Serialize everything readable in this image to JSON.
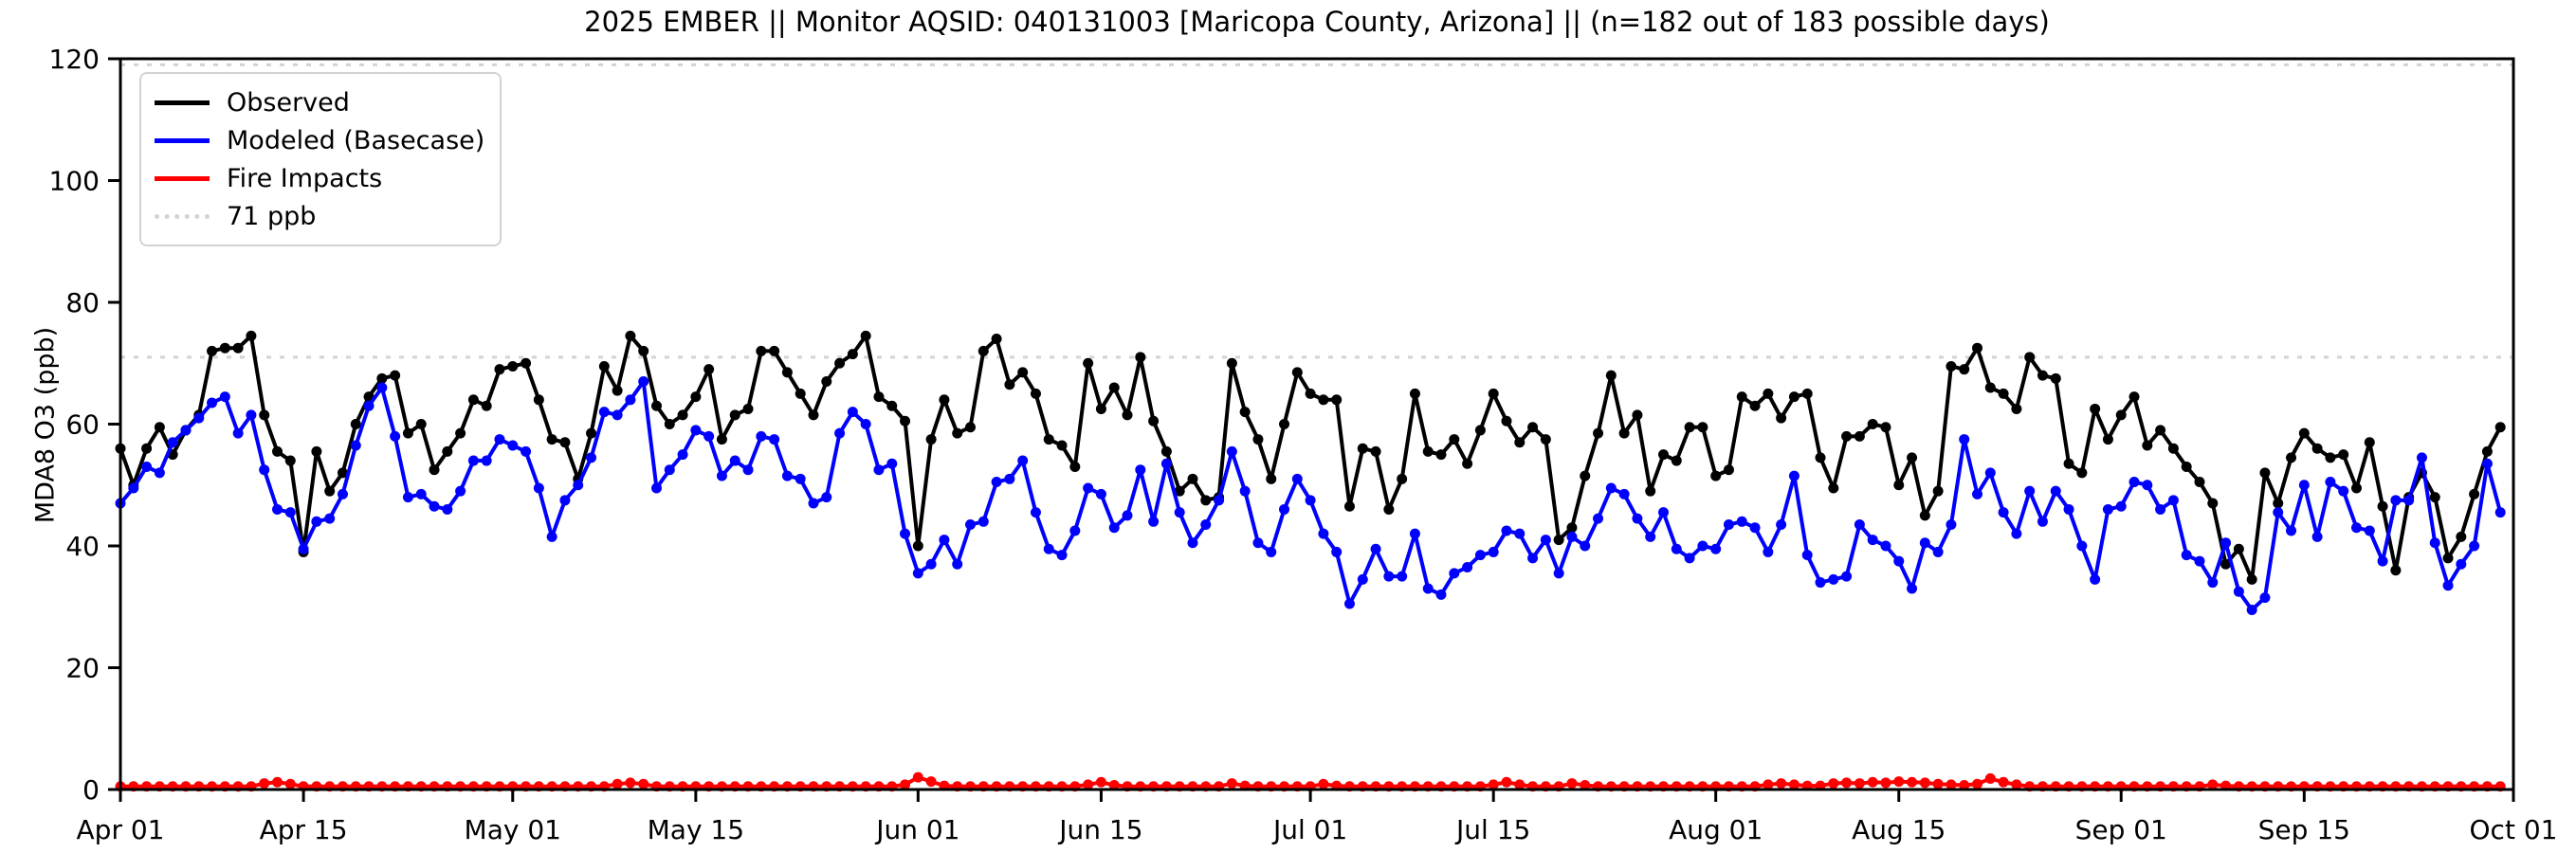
{
  "title": "2025 EMBER || Monitor AQSID: 040131003 [Maricopa County, Arizona] || (n=182 out of 183 possible days)",
  "y_axis_label": "MDA8 O3 (ppb)",
  "legend": {
    "position": "upper-left",
    "items": [
      {
        "label": "Observed",
        "color": "#000000",
        "style": "solid"
      },
      {
        "label": "Modeled (Basecase)",
        "color": "#0000ff",
        "style": "solid"
      },
      {
        "label": "Fire Impacts",
        "color": "#ff0000",
        "style": "solid"
      },
      {
        "label": "71 ppb",
        "color": "#d3d3d3",
        "style": "dotted"
      }
    ]
  },
  "chart_data": {
    "type": "line",
    "title": "2025 EMBER || Monitor AQSID: 040131003 [Maricopa County, Arizona] || (n=182 out of 183 possible days)",
    "xlabel": "",
    "ylabel": "MDA8 O3 (ppb)",
    "ylim": [
      0,
      120
    ],
    "y_ticks": [
      0,
      20,
      40,
      60,
      80,
      100,
      120
    ],
    "grid": false,
    "x_start_date": "Apr 01",
    "x_end_date": "Oct 01",
    "n_days": 183,
    "x_ticks": [
      {
        "day": 0,
        "label": "Apr 01"
      },
      {
        "day": 14,
        "label": "Apr 15"
      },
      {
        "day": 30,
        "label": "May 01"
      },
      {
        "day": 44,
        "label": "May 15"
      },
      {
        "day": 61,
        "label": "Jun 01"
      },
      {
        "day": 75,
        "label": "Jun 15"
      },
      {
        "day": 91,
        "label": "Jul 01"
      },
      {
        "day": 105,
        "label": "Jul 15"
      },
      {
        "day": 122,
        "label": "Aug 01"
      },
      {
        "day": 136,
        "label": "Aug 15"
      },
      {
        "day": 153,
        "label": "Sep 01"
      },
      {
        "day": 167,
        "label": "Sep 15"
      },
      {
        "day": 183,
        "label": "Oct 01"
      }
    ],
    "reference_lines": [
      {
        "value": 71,
        "label": "71 ppb",
        "color": "#d3d3d3",
        "style": "dotted"
      },
      {
        "value": 119,
        "label": "",
        "color": "#d3d3d3",
        "style": "dotted"
      }
    ],
    "series": [
      {
        "name": "Observed",
        "color": "#000000",
        "marker": "circle",
        "values": [
          56,
          50,
          56,
          59.5,
          55,
          59,
          61.5,
          72,
          72.5,
          72.5,
          74.5,
          61.5,
          55.5,
          54,
          39,
          55.5,
          49,
          52,
          60,
          64.5,
          67.5,
          68,
          58.5,
          60,
          52.5,
          55.5,
          58.5,
          64,
          63,
          69,
          69.5,
          70,
          64,
          57.5,
          57,
          51,
          58.5,
          69.5,
          65.5,
          74.5,
          72,
          63,
          60,
          61.5,
          64.5,
          69,
          57.5,
          61.5,
          62.5,
          72,
          72,
          68.5,
          65,
          61.5,
          67,
          70,
          71.5,
          74.5,
          64.5,
          63,
          60.5,
          40,
          57.5,
          64,
          58.5,
          59.5,
          72,
          74,
          66.5,
          68.5,
          65,
          57.5,
          56.5,
          53,
          70,
          62.5,
          66,
          61.5,
          71,
          60.5,
          55.5,
          49,
          51,
          47.5,
          48,
          70,
          62,
          57.5,
          51,
          60,
          68.5,
          65,
          64,
          64,
          46.5,
          56,
          55.5,
          46,
          51,
          65,
          55.5,
          55,
          57.5,
          53.5,
          59,
          65,
          60.5,
          57,
          59.5,
          57.5,
          41,
          43,
          51.5,
          58.5,
          68,
          58.5,
          61.5,
          49,
          55,
          54,
          59.5,
          59.5,
          51.5,
          52.5,
          64.5,
          63,
          65,
          61,
          64.5,
          65,
          54.5,
          49.5,
          58,
          58,
          60,
          59.5,
          50,
          54.5,
          45,
          49,
          69.5,
          69,
          72.5,
          66,
          65,
          62.5,
          71,
          68,
          67.5,
          53.5,
          52,
          62.5,
          57.5,
          61.5,
          64.5,
          56.5,
          59,
          56,
          53,
          50.5,
          47,
          37,
          39.5,
          34.5,
          52,
          47,
          54.5,
          58.5,
          56,
          54.5,
          55,
          49.5,
          57,
          46.5,
          36,
          48,
          52,
          48,
          38,
          41.5,
          48.5,
          55.5,
          59.5
        ]
      },
      {
        "name": "Modeled (Basecase)",
        "color": "#0000ff",
        "marker": "circle",
        "values": [
          47,
          49.5,
          53,
          52,
          57,
          59,
          61,
          63.5,
          64.5,
          58.5,
          61.5,
          52.5,
          46,
          45.5,
          39.5,
          44,
          44.5,
          48.5,
          56.5,
          63,
          66,
          58,
          48,
          48.5,
          46.5,
          46,
          49,
          54,
          54,
          57.5,
          56.5,
          55.5,
          49.5,
          41.5,
          47.5,
          50,
          54.5,
          62,
          61.5,
          64,
          67,
          49.5,
          52.5,
          55,
          59,
          58,
          51.5,
          54,
          52.5,
          58,
          57.5,
          51.5,
          51,
          47,
          48,
          58.5,
          62,
          60,
          52.5,
          53.5,
          42,
          35.5,
          37,
          41,
          37,
          43.5,
          44,
          50.5,
          51,
          54,
          45.5,
          39.5,
          38.5,
          42.5,
          49.5,
          48.5,
          43,
          45,
          52.5,
          44,
          53.5,
          45.5,
          40.5,
          43.5,
          47.5,
          55.5,
          49,
          40.5,
          39,
          46,
          51,
          47.5,
          42,
          39,
          30.5,
          34.5,
          39.5,
          35,
          35,
          42,
          33,
          32,
          35.5,
          36.5,
          38.5,
          39,
          42.5,
          42,
          38,
          41,
          35.5,
          41.5,
          40,
          44.5,
          49.5,
          48.5,
          44.5,
          41.5,
          45.5,
          39.5,
          38,
          40,
          39.5,
          43.5,
          44,
          43,
          39,
          43.5,
          51.5,
          38.5,
          34,
          34.5,
          35,
          43.5,
          41,
          40,
          37.5,
          33,
          40.5,
          39,
          43.5,
          57.5,
          48.5,
          52,
          45.5,
          42,
          49,
          44,
          49,
          46,
          40,
          34.5,
          46,
          46.5,
          50.5,
          50,
          46,
          47.5,
          38.5,
          37.5,
          34,
          40.5,
          32.5,
          29.5,
          31.5,
          45.5,
          42.5,
          50,
          41.5,
          50.5,
          49,
          43,
          42.5,
          37.5,
          47.5,
          47.5,
          54.5,
          40.5,
          33.5,
          37,
          40,
          53.5,
          45.5
        ]
      },
      {
        "name": "Fire Impacts",
        "color": "#ff0000",
        "marker": "circle",
        "values": [
          0.5,
          0.5,
          0.5,
          0.5,
          0.5,
          0.5,
          0.5,
          0.5,
          0.5,
          0.5,
          0.5,
          1.0,
          1.2,
          0.9,
          0.5,
          0.5,
          0.5,
          0.5,
          0.5,
          0.5,
          0.5,
          0.5,
          0.5,
          0.5,
          0.5,
          0.5,
          0.5,
          0.5,
          0.5,
          0.5,
          0.5,
          0.5,
          0.5,
          0.5,
          0.5,
          0.5,
          0.5,
          0.5,
          0.9,
          1.1,
          0.9,
          0.5,
          0.5,
          0.5,
          0.5,
          0.5,
          0.5,
          0.5,
          0.5,
          0.5,
          0.5,
          0.5,
          0.5,
          0.5,
          0.5,
          0.5,
          0.5,
          0.5,
          0.5,
          0.5,
          0.8,
          2.0,
          1.3,
          0.6,
          0.5,
          0.5,
          0.5,
          0.5,
          0.5,
          0.5,
          0.5,
          0.5,
          0.5,
          0.5,
          0.8,
          1.2,
          0.7,
          0.5,
          0.5,
          0.5,
          0.5,
          0.5,
          0.5,
          0.5,
          0.5,
          1.0,
          0.6,
          0.5,
          0.5,
          0.5,
          0.5,
          0.5,
          0.9,
          0.6,
          0.5,
          0.5,
          0.5,
          0.5,
          0.5,
          0.5,
          0.5,
          0.5,
          0.5,
          0.5,
          0.5,
          0.8,
          1.2,
          0.8,
          0.5,
          0.5,
          0.5,
          1.0,
          0.7,
          0.5,
          0.5,
          0.5,
          0.5,
          0.5,
          0.5,
          0.5,
          0.5,
          0.5,
          0.5,
          0.5,
          0.5,
          0.5,
          0.8,
          1.0,
          0.8,
          0.6,
          0.6,
          1.0,
          1.1,
          1.0,
          1.2,
          1.1,
          1.3,
          1.2,
          1.1,
          0.9,
          0.8,
          0.7,
          0.9,
          1.8,
          1.2,
          0.8,
          0.5,
          0.5,
          0.5,
          0.5,
          0.5,
          0.5,
          0.5,
          0.5,
          0.5,
          0.5,
          0.5,
          0.5,
          0.5,
          0.5,
          0.8,
          0.6,
          0.5,
          0.5,
          0.5,
          0.5,
          0.5,
          0.5,
          0.5,
          0.5,
          0.5,
          0.5,
          0.5,
          0.5,
          0.5,
          0.5,
          0.5,
          0.5,
          0.5,
          0.5,
          0.5,
          0.5,
          0.5
        ]
      }
    ]
  }
}
